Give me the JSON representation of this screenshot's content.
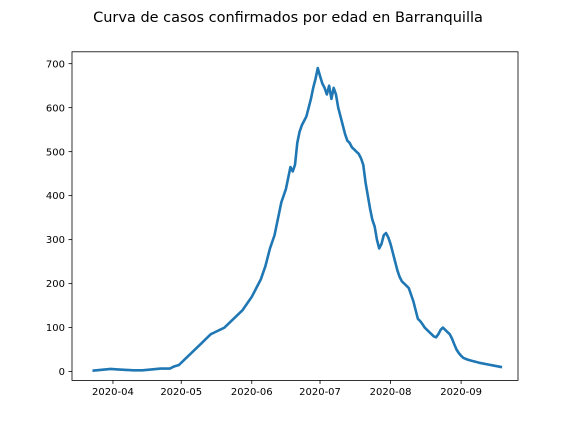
{
  "chart_data": {
    "type": "line",
    "title": "Curva de casos confirmados por edad en Barranquilla",
    "xlabel": "",
    "ylabel": "",
    "grid": false,
    "legend": "none",
    "color": "#1f77b4",
    "xlim": [
      "2020-03-14",
      "2020-09-26"
    ],
    "ylim": [
      -20,
      727
    ],
    "x_ticks": [
      {
        "date": "2020-04-01",
        "label": "2020-04"
      },
      {
        "date": "2020-05-01",
        "label": "2020-05"
      },
      {
        "date": "2020-06-01",
        "label": "2020-06"
      },
      {
        "date": "2020-07-01",
        "label": "2020-07"
      },
      {
        "date": "2020-08-01",
        "label": "2020-08"
      },
      {
        "date": "2020-09-01",
        "label": "2020-09"
      }
    ],
    "y_ticks": [
      {
        "value": 0,
        "label": "0"
      },
      {
        "value": 100,
        "label": "100"
      },
      {
        "value": 200,
        "label": "200"
      },
      {
        "value": 300,
        "label": "300"
      },
      {
        "value": 400,
        "label": "400"
      },
      {
        "value": 500,
        "label": "500"
      },
      {
        "value": 600,
        "label": "600"
      },
      {
        "value": 700,
        "label": "700"
      }
    ],
    "series": [
      {
        "x": [
          "2020-03-23",
          "2020-03-27",
          "2020-03-31",
          "2020-04-03",
          "2020-04-06",
          "2020-04-10",
          "2020-04-14",
          "2020-04-18",
          "2020-04-22",
          "2020-04-26",
          "2020-04-28",
          "2020-04-30",
          "2020-05-02",
          "2020-05-04",
          "2020-05-06",
          "2020-05-08",
          "2020-05-10",
          "2020-05-12",
          "2020-05-14",
          "2020-05-16",
          "2020-05-18",
          "2020-05-20",
          "2020-05-22",
          "2020-05-24",
          "2020-05-26",
          "2020-05-28",
          "2020-05-30",
          "2020-06-01",
          "2020-06-03",
          "2020-06-05",
          "2020-06-07",
          "2020-06-09",
          "2020-06-11",
          "2020-06-13",
          "2020-06-14",
          "2020-06-15",
          "2020-06-16",
          "2020-06-17",
          "2020-06-18",
          "2020-06-19",
          "2020-06-20",
          "2020-06-21",
          "2020-06-22",
          "2020-06-23",
          "2020-06-24",
          "2020-06-25",
          "2020-06-26",
          "2020-06-27",
          "2020-06-28",
          "2020-06-29",
          "2020-06-30",
          "2020-07-01",
          "2020-07-02",
          "2020-07-03",
          "2020-07-04",
          "2020-07-05",
          "2020-07-06",
          "2020-07-07",
          "2020-07-08",
          "2020-07-09",
          "2020-07-10",
          "2020-07-11",
          "2020-07-12",
          "2020-07-13",
          "2020-07-14",
          "2020-07-15",
          "2020-07-16",
          "2020-07-17",
          "2020-07-18",
          "2020-07-19",
          "2020-07-20",
          "2020-07-21",
          "2020-07-22",
          "2020-07-23",
          "2020-07-24",
          "2020-07-25",
          "2020-07-26",
          "2020-07-27",
          "2020-07-28",
          "2020-07-29",
          "2020-07-30",
          "2020-07-31",
          "2020-08-01",
          "2020-08-02",
          "2020-08-03",
          "2020-08-04",
          "2020-08-05",
          "2020-08-06",
          "2020-08-07",
          "2020-08-08",
          "2020-08-09",
          "2020-08-10",
          "2020-08-11",
          "2020-08-12",
          "2020-08-13",
          "2020-08-14",
          "2020-08-15",
          "2020-08-16",
          "2020-08-17",
          "2020-08-18",
          "2020-08-19",
          "2020-08-20",
          "2020-08-21",
          "2020-08-22",
          "2020-08-23",
          "2020-08-24",
          "2020-08-25",
          "2020-08-26",
          "2020-08-27",
          "2020-08-28",
          "2020-08-29",
          "2020-08-30",
          "2020-08-31",
          "2020-09-01",
          "2020-09-02",
          "2020-09-04",
          "2020-09-06",
          "2020-09-09",
          "2020-09-12",
          "2020-09-15",
          "2020-09-19"
        ],
        "y": [
          2,
          4,
          6,
          5,
          4,
          3,
          3,
          5,
          7,
          7,
          12,
          15,
          25,
          35,
          45,
          55,
          65,
          75,
          85,
          90,
          95,
          100,
          110,
          120,
          130,
          140,
          155,
          170,
          190,
          210,
          240,
          280,
          310,
          360,
          385,
          400,
          415,
          440,
          465,
          455,
          470,
          520,
          545,
          560,
          570,
          580,
          600,
          620,
          645,
          665,
          690,
          672,
          655,
          645,
          630,
          650,
          620,
          645,
          630,
          600,
          580,
          560,
          540,
          525,
          520,
          510,
          505,
          500,
          495,
          485,
          470,
          430,
          400,
          370,
          345,
          330,
          300,
          280,
          290,
          310,
          315,
          305,
          290,
          270,
          250,
          230,
          215,
          205,
          200,
          195,
          190,
          175,
          160,
          140,
          120,
          115,
          108,
          100,
          95,
          90,
          85,
          80,
          78,
          85,
          95,
          100,
          95,
          90,
          85,
          75,
          62,
          50,
          42,
          36,
          31,
          27,
          24,
          20,
          17,
          14,
          10
        ]
      }
    ]
  }
}
